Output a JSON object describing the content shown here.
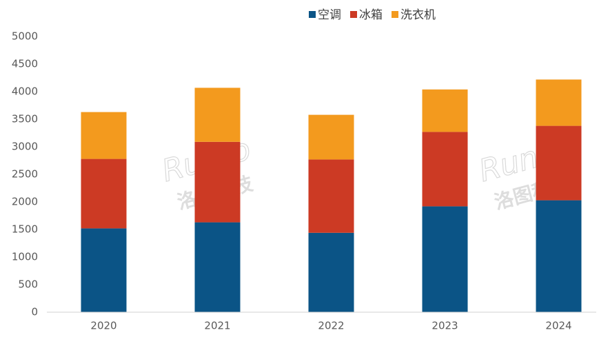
{
  "chart_data": {
    "type": "stacked_bar",
    "categories": [
      "2020",
      "2021",
      "2022",
      "2023",
      "2024"
    ],
    "series": [
      {
        "name": "空调",
        "color": "#0b5486",
        "values": [
          1520,
          1630,
          1440,
          1920,
          2030
        ]
      },
      {
        "name": "冰箱",
        "color": "#cc3a24",
        "values": [
          1260,
          1460,
          1330,
          1350,
          1350
        ]
      },
      {
        "name": "洗衣机",
        "color": "#f39a1e",
        "values": [
          850,
          980,
          810,
          770,
          840
        ]
      }
    ],
    "ylim": [
      0,
      5000
    ],
    "yticks": [
      0,
      500,
      1000,
      1500,
      2000,
      2500,
      3000,
      3500,
      4000,
      4500,
      5000
    ],
    "grid": false,
    "legend": "top",
    "watermark": [
      "Runto",
      "洛图科技"
    ]
  }
}
